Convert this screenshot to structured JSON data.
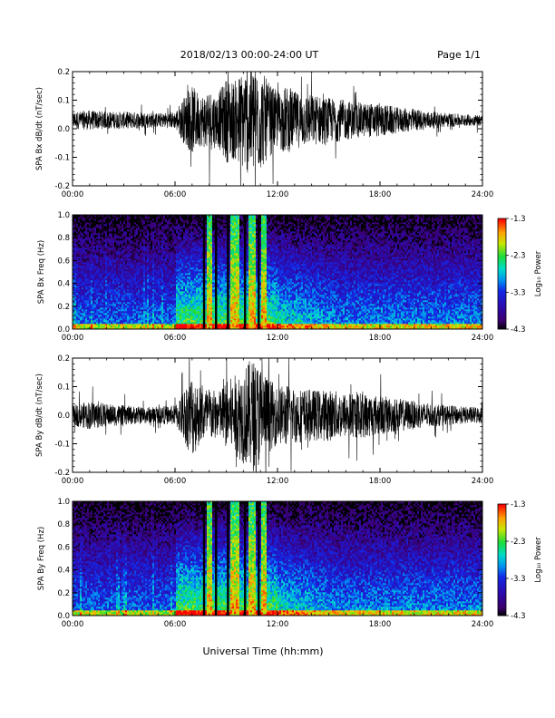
{
  "header": {
    "title": "2018/02/13  00:00-24:00 UT",
    "page": "Page 1/1"
  },
  "xlabel": "Universal Time (hh:mm)",
  "colorbar": {
    "label": "Log₁₀ Power",
    "ticks": [
      "-1.3",
      "-2.3",
      "-3.3",
      "-4.3"
    ]
  },
  "chart_data": [
    {
      "type": "line",
      "title": "",
      "ylabel": "SPA Bx dB/dt (nT/sec)",
      "xlabel": "",
      "xlim": [
        0,
        24
      ],
      "ylim": [
        -0.2,
        0.2
      ],
      "x_ticks": [
        "00:00",
        "06:00",
        "12:00",
        "18:00",
        "24:00"
      ],
      "y_ticks": [
        "-0.2",
        "-0.1",
        "0.0",
        "0.1",
        "0.2"
      ],
      "offset": 0.03,
      "activity": {
        "hours": [
          0,
          1,
          2,
          3,
          4,
          5,
          6,
          6.5,
          7,
          7.5,
          8,
          8.5,
          9,
          9.5,
          10,
          10.5,
          11,
          11.5,
          12,
          12.5,
          13,
          14,
          15,
          16,
          17,
          18,
          19,
          20,
          21,
          22,
          23,
          24
        ],
        "amplitude": [
          0.03,
          0.035,
          0.03,
          0.03,
          0.03,
          0.025,
          0.03,
          0.08,
          0.12,
          0.09,
          0.11,
          0.09,
          0.15,
          0.14,
          0.18,
          0.2,
          0.18,
          0.13,
          0.1,
          0.12,
          0.1,
          0.09,
          0.08,
          0.07,
          0.06,
          0.06,
          0.045,
          0.04,
          0.03,
          0.025,
          0.02,
          0.02
        ]
      }
    },
    {
      "type": "heatmap",
      "title": "",
      "ylabel": "SPA Bx Freq (Hz)",
      "xlabel": "",
      "xlim": [
        0,
        24
      ],
      "ylim": [
        0,
        1
      ],
      "x_ticks": [
        "00:00",
        "06:00",
        "12:00",
        "18:00",
        "24:00"
      ],
      "y_ticks": [
        "0.0",
        "0.2",
        "0.4",
        "0.6",
        "0.8",
        "1.0"
      ],
      "value_range": [
        -4.3,
        -1.3
      ],
      "colorbar_label": "Log₁₀ Power",
      "bright_bands_hours": [
        [
          7.9,
          8.2
        ],
        [
          9.2,
          9.8
        ],
        [
          10.3,
          10.7
        ],
        [
          11.0,
          11.4
        ]
      ],
      "dark_lines_hours": [
        7.7,
        8.4,
        9.1,
        10.1,
        10.9
      ]
    },
    {
      "type": "line",
      "title": "",
      "ylabel": "SPA By dB/dt (nT/sec)",
      "xlabel": "",
      "xlim": [
        0,
        24
      ],
      "ylim": [
        -0.2,
        0.2
      ],
      "x_ticks": [
        "00:00",
        "06:00",
        "12:00",
        "18:00",
        "24:00"
      ],
      "y_ticks": [
        "-0.2",
        "-0.1",
        "0.0",
        "0.1",
        "0.2"
      ],
      "offset": 0.0,
      "activity": {
        "hours": [
          0,
          1,
          2,
          3,
          4,
          5,
          6,
          6.5,
          7,
          7.5,
          8,
          8.5,
          9,
          9.5,
          10,
          10.5,
          11,
          11.5,
          12,
          12.5,
          13,
          14,
          15,
          16,
          17,
          18,
          19,
          20,
          21,
          22,
          23,
          24
        ],
        "amplitude": [
          0.035,
          0.05,
          0.04,
          0.035,
          0.03,
          0.03,
          0.035,
          0.09,
          0.15,
          0.1,
          0.1,
          0.08,
          0.12,
          0.14,
          0.17,
          0.2,
          0.18,
          0.13,
          0.1,
          0.11,
          0.1,
          0.09,
          0.09,
          0.08,
          0.08,
          0.07,
          0.06,
          0.05,
          0.04,
          0.035,
          0.03,
          0.03
        ]
      }
    },
    {
      "type": "heatmap",
      "title": "",
      "ylabel": "SPA By Freq (Hz)",
      "xlabel": "",
      "xlim": [
        0,
        24
      ],
      "ylim": [
        0,
        1
      ],
      "x_ticks": [
        "00:00",
        "06:00",
        "12:00",
        "18:00",
        "24:00"
      ],
      "y_ticks": [
        "0.0",
        "0.2",
        "0.4",
        "0.6",
        "0.8",
        "1.0"
      ],
      "value_range": [
        -4.3,
        -1.3
      ],
      "colorbar_label": "Log₁₀ Power",
      "bright_bands_hours": [
        [
          7.9,
          8.2
        ],
        [
          9.2,
          9.8
        ],
        [
          10.3,
          10.7
        ],
        [
          11.0,
          11.4
        ]
      ],
      "dark_lines_hours": [
        7.7,
        8.4,
        9.1,
        10.1,
        10.9
      ]
    }
  ]
}
